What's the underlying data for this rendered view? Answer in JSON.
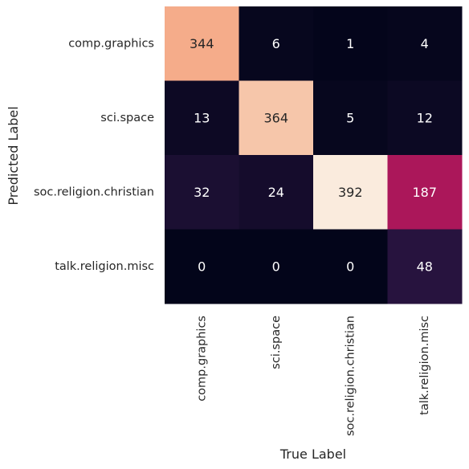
{
  "chart_data": {
    "type": "heatmap",
    "title": "",
    "xlabel": "True Label",
    "ylabel": "Predicted Label",
    "x_categories": [
      "comp.graphics",
      "sci.space",
      "soc.religion.christian",
      "talk.religion.misc"
    ],
    "y_categories": [
      "comp.graphics",
      "sci.space",
      "soc.religion.christian",
      "talk.religion.misc"
    ],
    "values": [
      [
        344,
        6,
        1,
        4
      ],
      [
        13,
        364,
        5,
        12
      ],
      [
        32,
        24,
        392,
        187
      ],
      [
        0,
        0,
        0,
        48
      ]
    ],
    "colorbar": false,
    "annotated": true
  }
}
